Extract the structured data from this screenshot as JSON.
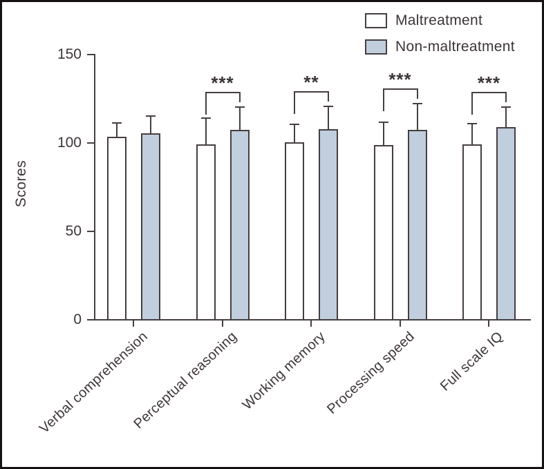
{
  "figure": {
    "background": "#ffffff",
    "border_color": "#171314"
  },
  "colors": {
    "line": "#453e40",
    "text": "#3c3538",
    "maltreatment_fill": "#ffffff",
    "non_maltreatment_fill": "#c0cedd"
  },
  "legend": {
    "items": [
      {
        "label": "Maltreatment"
      },
      {
        "label": "Non-maltreatment"
      }
    ]
  },
  "chart_data": {
    "type": "bar",
    "title": "",
    "xlabel": "",
    "ylabel": "Scores",
    "ylim": [
      0,
      150
    ],
    "yticks": [
      0,
      50,
      100,
      150
    ],
    "grid": false,
    "legend_position": "top-right",
    "categories": [
      "Verbal comprehension",
      "Perceptual reasoning",
      "Working memory",
      "Processing speed",
      "Full scale IQ"
    ],
    "series": [
      {
        "name": "Maltreatment",
        "fill": "#ffffff",
        "values": [
          103,
          99,
          100,
          98.5,
          99
        ],
        "error_top": [
          111,
          113.5,
          110,
          111.5,
          110.5
        ]
      },
      {
        "name": "Non-maltreatment",
        "fill": "#c0cedd",
        "values": [
          105,
          107,
          107.5,
          107,
          108.5
        ],
        "error_top": [
          115,
          120,
          120.5,
          122,
          120
        ]
      }
    ],
    "significance": [
      {
        "category_index": 1,
        "label": "***"
      },
      {
        "category_index": 2,
        "label": "**"
      },
      {
        "category_index": 3,
        "label": "***"
      },
      {
        "category_index": 4,
        "label": "***"
      }
    ]
  }
}
